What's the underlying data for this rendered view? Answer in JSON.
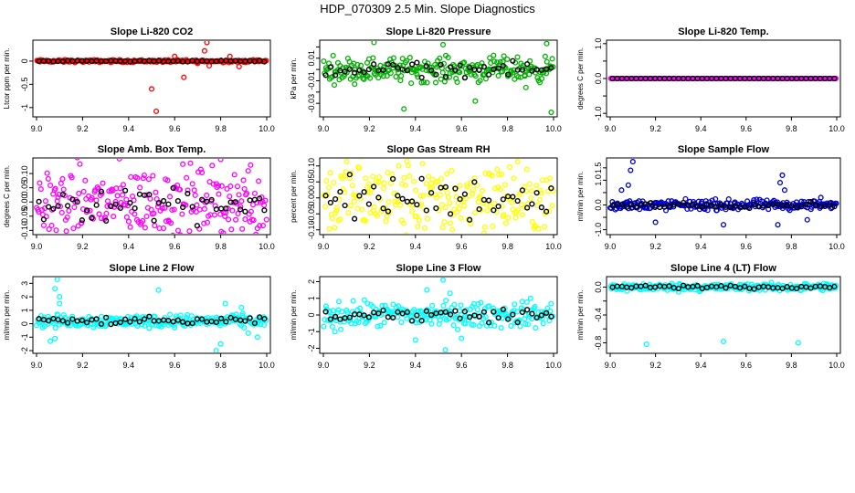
{
  "page": {
    "title": "HDP_070309  2.5 Min. Slope Diagnostics"
  },
  "chart_data": [
    {
      "type": "scatter",
      "title": "Slope Li-820 CO2",
      "xlabel": "",
      "ylabel": "Ltcor ppm per min.",
      "color": "#ff0000",
      "xlim": [
        9.0,
        10.0
      ],
      "ylim": [
        -1.2,
        0.45
      ],
      "xticks": [
        9.0,
        9.2,
        9.4,
        9.6,
        9.8,
        10.0
      ],
      "xtick_labels": [
        "9.0",
        "9.2",
        "9.4",
        "9.6",
        "9.8",
        "10.0"
      ],
      "yticks": [
        -1.0,
        -0.5,
        0.0
      ],
      "ytick_labels": [
        "-1",
        "-0.5",
        "0"
      ],
      "base": 0.0,
      "spread": 0.02,
      "outliers": [
        [
          9.52,
          -1.08
        ],
        [
          9.5,
          -0.6
        ],
        [
          9.74,
          0.4
        ],
        [
          9.73,
          0.22
        ],
        [
          9.75,
          -0.1
        ],
        [
          9.6,
          0.1
        ],
        [
          9.7,
          -0.05
        ],
        [
          9.84,
          0.1
        ],
        [
          9.88,
          -0.12
        ],
        [
          9.64,
          -0.35
        ]
      ]
    },
    {
      "type": "scatter",
      "title": "Slope Li-820 Pressure",
      "xlabel": "",
      "ylabel": "kPa per min.",
      "color": "#00b000",
      "xlim": [
        9.0,
        10.0
      ],
      "ylim": [
        -0.042,
        0.026
      ],
      "xticks": [
        9.0,
        9.2,
        9.4,
        9.6,
        9.8,
        10.0
      ],
      "xtick_labels": [
        "9.0",
        "9.2",
        "9.4",
        "9.6",
        "9.8",
        "10.0"
      ],
      "yticks": [
        -0.03,
        -0.02,
        -0.01,
        0.0,
        0.01,
        0.02
      ],
      "ytick_labels": [
        "-0.03",
        "",
        "-0.01",
        "",
        "0.01",
        ""
      ],
      "base": 0.0,
      "spread": 0.008,
      "outliers": [
        [
          9.35,
          -0.035
        ],
        [
          9.66,
          -0.028
        ],
        [
          9.99,
          -0.038
        ],
        [
          9.22,
          0.024
        ],
        [
          9.52,
          0.022
        ],
        [
          9.97,
          0.023
        ],
        [
          9.88,
          -0.016
        ]
      ]
    },
    {
      "type": "scatter",
      "title": "Slope Li-820 Temp.",
      "xlabel": "",
      "ylabel": "degrees C per min.",
      "color": "#ff00ff",
      "xlim": [
        9.0,
        10.0
      ],
      "ylim": [
        -1.1,
        1.1
      ],
      "xticks": [
        9.0,
        9.2,
        9.4,
        9.6,
        9.8,
        10.0
      ],
      "xtick_labels": [
        "9.0",
        "9.2",
        "9.4",
        "9.6",
        "9.8",
        "10.0"
      ],
      "yticks": [
        -1.0,
        -0.5,
        0.0,
        0.5,
        1.0
      ],
      "ytick_labels": [
        "-1.0",
        "",
        "0.0",
        "",
        "1.0"
      ],
      "base": 0.0,
      "spread": 0.0,
      "outliers": []
    },
    {
      "type": "scatter",
      "title": "Slope Amb. Box Temp.",
      "xlabel": "",
      "ylabel": "degrees C per min.",
      "color": "#ff00ff",
      "xlim": [
        9.0,
        10.0
      ],
      "ylim": [
        -0.115,
        0.155
      ],
      "xticks": [
        9.0,
        9.2,
        9.4,
        9.6,
        9.8,
        10.0
      ],
      "xtick_labels": [
        "9.0",
        "9.2",
        "9.4",
        "9.6",
        "9.8",
        "10.0"
      ],
      "yticks": [
        -0.1,
        -0.05,
        0.0,
        0.05,
        0.1
      ],
      "ytick_labels": [
        "-0.10",
        "-0.05",
        "0.00",
        "0.05",
        "0.10"
      ],
      "base": 0.0,
      "spread": 0.09,
      "outliers": [
        [
          9.8,
          0.15
        ],
        [
          9.93,
          0.13
        ]
      ]
    },
    {
      "type": "scatter",
      "title": "Slope Gas Stream RH",
      "xlabel": "",
      "ylabel": "percent per min.",
      "color": "#ffff00",
      "xlim": [
        9.0,
        10.0
      ],
      "ylim": [
        -0.115,
        0.125
      ],
      "xticks": [
        9.0,
        9.2,
        9.4,
        9.6,
        9.8,
        10.0
      ],
      "xtick_labels": [
        "9.0",
        "9.2",
        "9.4",
        "9.6",
        "9.8",
        "10.0"
      ],
      "yticks": [
        -0.1,
        -0.05,
        0.0,
        0.05,
        0.1
      ],
      "ytick_labels": [
        "-0.10",
        "-0.05",
        "0.00",
        "0.05",
        "0.10"
      ],
      "base": 0.0,
      "spread": 0.09,
      "outliers": []
    },
    {
      "type": "scatter",
      "title": "Slope Sample Flow",
      "xlabel": "",
      "ylabel": "ml/min per min.",
      "color": "#0000cc",
      "xlim": [
        9.0,
        10.0
      ],
      "ylim": [
        -1.2,
        1.9
      ],
      "xticks": [
        9.0,
        9.2,
        9.4,
        9.6,
        9.8,
        10.0
      ],
      "xtick_labels": [
        "9.0",
        "9.2",
        "9.4",
        "9.6",
        "9.8",
        "10.0"
      ],
      "yticks": [
        -1.0,
        -0.5,
        0.0,
        0.5,
        1.0,
        1.5
      ],
      "ytick_labels": [
        "-1.0",
        "",
        "0.0",
        "",
        "1.0",
        "1.5"
      ],
      "base": 0.0,
      "spread": 0.15,
      "outliers": [
        [
          9.1,
          1.75
        ],
        [
          9.09,
          1.4
        ],
        [
          9.08,
          0.8
        ],
        [
          9.05,
          0.6
        ],
        [
          9.76,
          1.2
        ],
        [
          9.75,
          0.9
        ],
        [
          9.77,
          0.6
        ],
        [
          9.74,
          -0.8
        ],
        [
          9.5,
          -0.8
        ],
        [
          9.93,
          0.3
        ],
        [
          9.87,
          -0.6
        ],
        [
          9.2,
          -0.7
        ]
      ]
    },
    {
      "type": "scatter",
      "title": "Slope Line 2 Flow",
      "xlabel": "",
      "ylabel": "ml/min per min.",
      "color": "#00ffff",
      "xlim": [
        9.0,
        10.0
      ],
      "ylim": [
        -2.2,
        3.5
      ],
      "xticks": [
        9.0,
        9.2,
        9.4,
        9.6,
        9.8,
        10.0
      ],
      "xtick_labels": [
        "9.0",
        "9.2",
        "9.4",
        "9.6",
        "9.8",
        "10.0"
      ],
      "yticks": [
        -2,
        -1,
        0,
        1,
        2,
        3
      ],
      "ytick_labels": [
        "-2",
        "-1",
        "0",
        "1",
        "2",
        "3"
      ],
      "base": 0.2,
      "spread": 0.35,
      "outliers": [
        [
          9.09,
          3.3
        ],
        [
          9.08,
          2.6
        ],
        [
          9.1,
          2.0
        ],
        [
          9.06,
          -1.3
        ],
        [
          9.08,
          -1.1
        ],
        [
          9.53,
          2.5
        ],
        [
          9.8,
          -1.5
        ],
        [
          9.78,
          -2.0
        ],
        [
          9.82,
          1.5
        ],
        [
          9.89,
          1.2
        ],
        [
          9.96,
          -1.0
        ],
        [
          9.92,
          -0.7
        ],
        [
          9.1,
          1.5
        ]
      ]
    },
    {
      "type": "scatter",
      "title": "Slope Line 3 Flow",
      "xlabel": "",
      "ylabel": "ml/min per min.",
      "color": "#00ffff",
      "xlim": [
        9.0,
        10.0
      ],
      "ylim": [
        -2.3,
        2.3
      ],
      "xticks": [
        9.0,
        9.2,
        9.4,
        9.6,
        9.8,
        10.0
      ],
      "xtick_labels": [
        "9.0",
        "9.2",
        "9.4",
        "9.6",
        "9.8",
        "10.0"
      ],
      "yticks": [
        -2,
        -1,
        0,
        1,
        2
      ],
      "ytick_labels": [
        "-2",
        "-1",
        "0",
        "1",
        "2"
      ],
      "base": 0.0,
      "spread": 0.55,
      "outliers": [
        [
          9.52,
          2.1
        ],
        [
          9.53,
          -2.1
        ],
        [
          9.45,
          1.5
        ],
        [
          9.6,
          -1.4
        ],
        [
          9.55,
          1.3
        ],
        [
          9.4,
          -1.5
        ],
        [
          9.05,
          -1.0
        ],
        [
          9.9,
          1.0
        ]
      ]
    },
    {
      "type": "scatter",
      "title": "Slope Line 4 (LT) Flow",
      "xlabel": "",
      "ylabel": "ml/min per min.",
      "color": "#00ffff",
      "xlim": [
        9.0,
        10.0
      ],
      "ylim": [
        -0.95,
        0.15
      ],
      "xticks": [
        9.0,
        9.2,
        9.4,
        9.6,
        9.8,
        10.0
      ],
      "xtick_labels": [
        "9.0",
        "9.2",
        "9.4",
        "9.6",
        "9.8",
        "10.0"
      ],
      "yticks": [
        -0.8,
        -0.6,
        -0.4,
        -0.2,
        0.0
      ],
      "ytick_labels": [
        "-0.8",
        "",
        "-0.4",
        "",
        "0.0"
      ],
      "base": 0.0,
      "spread": 0.04,
      "outliers": [
        [
          9.16,
          -0.82
        ],
        [
          9.5,
          -0.78
        ],
        [
          9.83,
          -0.8
        ]
      ]
    }
  ]
}
